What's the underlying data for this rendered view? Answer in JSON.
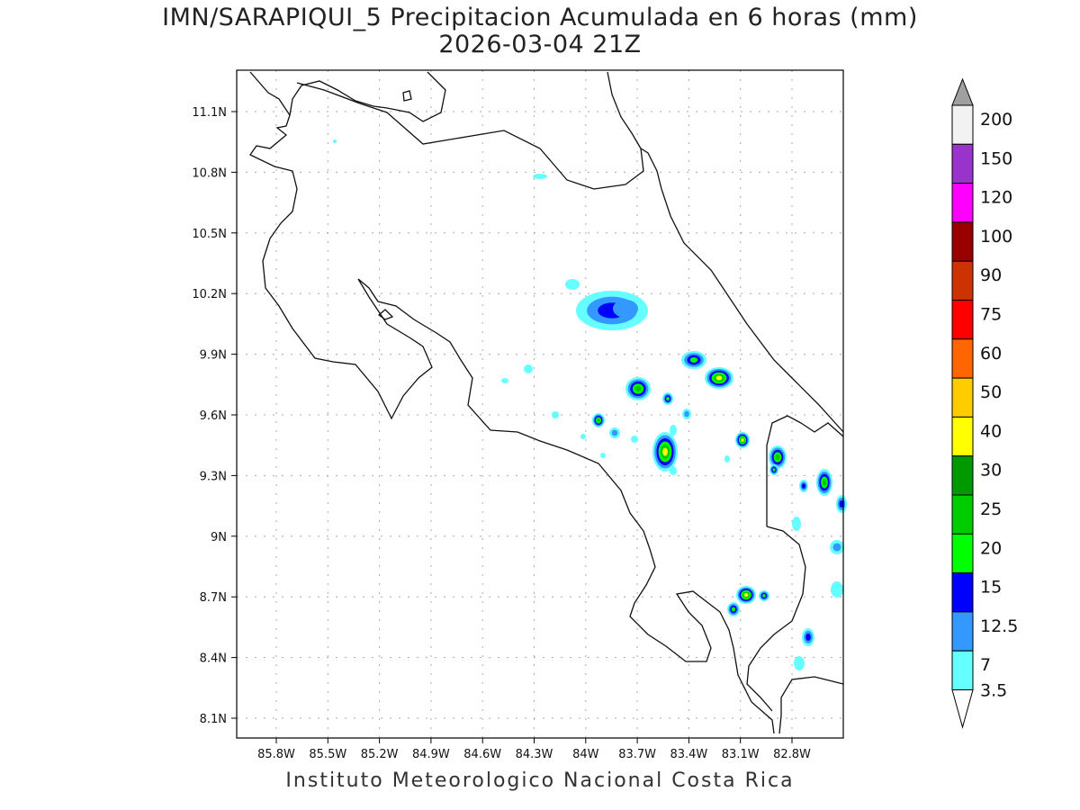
{
  "title": {
    "line1": "IMN/SARAPIQUI_5 Precipitacion Acumulada en 6 horas (mm)",
    "line2": "2026-03-04 21Z"
  },
  "map": {
    "lon_ticks": [
      "85.8W",
      "85.5W",
      "85.2W",
      "84.9W",
      "84.6W",
      "84.3W",
      "84W",
      "83.7W",
      "83.4W",
      "83.1W",
      "82.8W"
    ],
    "lat_ticks": [
      "11.1N",
      "10.8N",
      "10.5N",
      "10.2N",
      "9.9N",
      "9.6N",
      "9.3N",
      "9N",
      "8.7N",
      "8.4N",
      "8.1N"
    ]
  },
  "colorbar": {
    "labels": [
      "200",
      "150",
      "120",
      "100",
      "90",
      "75",
      "60",
      "50",
      "40",
      "30",
      "25",
      "20",
      "15",
      "12.5",
      "7",
      "3.5"
    ],
    "colors": [
      "#f2f2f2",
      "#9933cc",
      "#ff00ff",
      "#990000",
      "#cc3300",
      "#ff0000",
      "#ff6600",
      "#ffcc00",
      "#ffff00",
      "#009900",
      "#00cc00",
      "#00ff00",
      "#0000ff",
      "#3399ff",
      "#66ffff"
    ],
    "over_color": "#a0a0a0",
    "under_color": "#ffffff"
  },
  "footer": "Instituto Meteorologico Nacional Costa Rica"
}
